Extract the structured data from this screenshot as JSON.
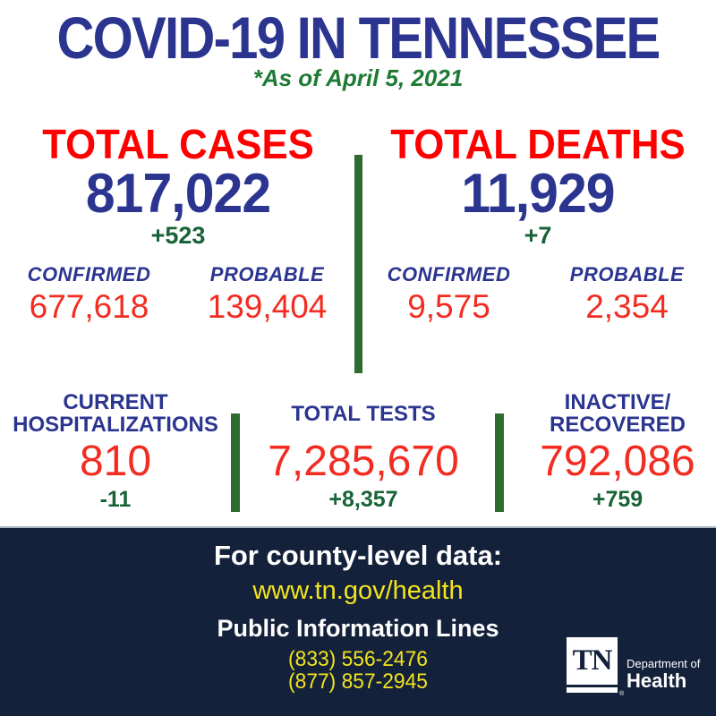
{
  "title": "COVID-19 IN TENNESSEE",
  "subtitle": "*As of April 5, 2021",
  "colors": {
    "navy": "#2B3590",
    "heading_red": "#FF0000",
    "number_red": "#F22C21",
    "green": "#1E7A34",
    "delta_green": "#186337",
    "divider_green": "#2E6B2E",
    "footer_bg": "#14213B",
    "yellow": "#F2E41E"
  },
  "stats": {
    "cases": {
      "heading": "TOTAL CASES",
      "value": "817,022",
      "delta": "+523",
      "confirmed_label": "CONFIRMED",
      "confirmed_value": "677,618",
      "probable_label": "PROBABLE",
      "probable_value": "139,404"
    },
    "deaths": {
      "heading": "TOTAL DEATHS",
      "value": "11,929",
      "delta": "+7",
      "confirmed_label": "CONFIRMED",
      "confirmed_value": "9,575",
      "probable_label": "PROBABLE",
      "probable_value": "2,354"
    },
    "hospitalizations": {
      "label_line1": "CURRENT",
      "label_line2": "HOSPITALIZATIONS",
      "value": "810",
      "delta": "-11"
    },
    "tests": {
      "label": "TOTAL TESTS",
      "value": "7,285,670",
      "delta": "+8,357"
    },
    "inactive_recovered": {
      "label_line1": "INACTIVE/",
      "label_line2": "RECOVERED",
      "value": "792,086",
      "delta": "+759"
    }
  },
  "footer": {
    "county_heading": "For county-level data:",
    "url": "www.tn.gov/health",
    "info_lines_heading": "Public Information Lines",
    "phone1": "(833) 556-2476",
    "phone2": "(877) 857-2945",
    "logo": {
      "tn": "TN",
      "department_of": "Department of",
      "health": "Health"
    }
  }
}
